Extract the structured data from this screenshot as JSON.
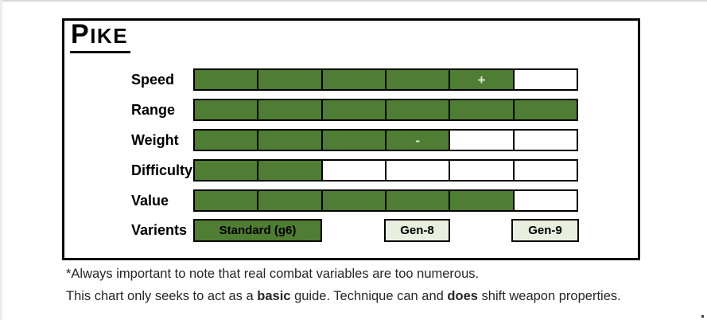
{
  "title": {
    "text": "Pike",
    "first_letter": "P",
    "rest": "IKE"
  },
  "colors": {
    "bar_green": "#4f7d33",
    "bar_empty": "#ffffff",
    "symbol_text": "#ddeccb",
    "variant_primary_bg": "#4f7d33",
    "variant_light_bg": "#e9efdf",
    "border": "#000000",
    "footnote_text": "#262626"
  },
  "stats": [
    {
      "label": "Speed",
      "filled": 5,
      "max": 6,
      "symbol": "+",
      "symbol_segment": 5
    },
    {
      "label": "Range",
      "filled": 6,
      "max": 6
    },
    {
      "label": "Weight",
      "filled": 4,
      "max": 6,
      "symbol": "-",
      "symbol_segment": 4
    },
    {
      "label": "Difficulty",
      "filled": 2,
      "max": 6
    },
    {
      "label": "Value",
      "filled": 5,
      "max": 6
    }
  ],
  "variants": {
    "label": "Varients",
    "buttons": [
      {
        "label": "Standard (g6)"
      },
      {
        "label": "Gen-8"
      },
      {
        "label": "Gen-9"
      }
    ]
  },
  "footnote": {
    "line1": "*Always important to note that real combat variables are too numerous.",
    "line2_parts": [
      {
        "text": "This chart only seeks to act as a ",
        "bold": false
      },
      {
        "text": "basic",
        "bold": true
      },
      {
        "text": " guide. Technique can and ",
        "bold": false
      },
      {
        "text": "does",
        "bold": true
      },
      {
        "text": " shift weapon properties.",
        "bold": false
      }
    ]
  },
  "chart_data": {
    "type": "bar",
    "title": "Pike",
    "categories": [
      "Speed",
      "Range",
      "Weight",
      "Difficulty",
      "Value"
    ],
    "values": [
      5,
      6,
      4,
      2,
      5
    ],
    "value_max": 6,
    "segments_per_bar": 6,
    "segment_annotations": [
      {
        "category": "Speed",
        "segment_index": 5,
        "symbol": "+"
      },
      {
        "category": "Weight",
        "segment_index": 4,
        "symbol": "-"
      }
    ],
    "variants_label": "Varients",
    "variants": [
      "Standard (g6)",
      "Gen-8",
      "Gen-9"
    ],
    "orientation": "horizontal",
    "grid": false,
    "legend_position": "none"
  }
}
